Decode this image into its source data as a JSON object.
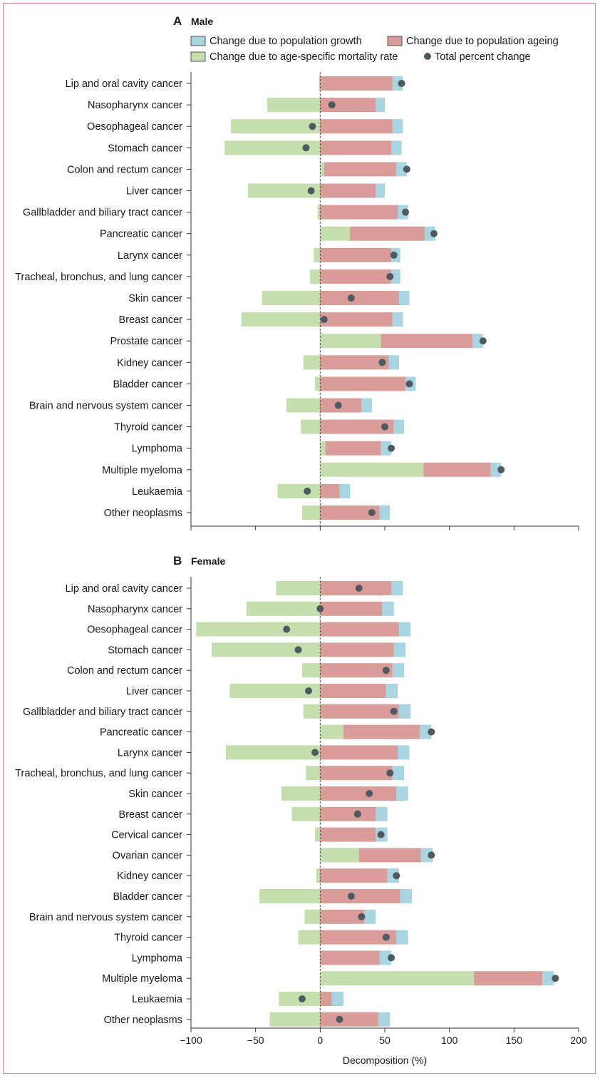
{
  "chart_data": [
    {
      "type": "bar",
      "panel": "A",
      "title": "Male",
      "xlabel": "",
      "xlim": [
        -100,
        200
      ],
      "xticks": [
        -100,
        -50,
        0,
        50,
        100,
        150,
        200
      ],
      "show_tick_labels": false,
      "legend": [
        {
          "key": "growth",
          "label": "Change due to population growth",
          "color": "#a8d5e2"
        },
        {
          "key": "ageing",
          "label": "Change due to population ageing",
          "color": "#d99c98"
        },
        {
          "key": "mortality",
          "label": "Change due to age-specific mortality rate",
          "color": "#c4deae"
        },
        {
          "key": "total",
          "label": "Total percent change",
          "color": "#4d5b5e"
        }
      ],
      "categories": [
        "Lip and oral cavity cancer",
        "Nasopharynx cancer",
        "Oesophageal cancer",
        "Stomach cancer",
        "Colon and rectum cancer",
        "Liver cancer",
        "Gallbladder and biliary tract cancer",
        "Pancreatic cancer",
        "Larynx cancer",
        "Tracheal, bronchus, and lung cancer",
        "Skin cancer",
        "Breast cancer",
        "Prostate cancer",
        "Kidney cancer",
        "Bladder cancer",
        "Brain and nervous system cancer",
        "Thyroid cancer",
        "Lymphoma",
        "Multiple myeloma",
        "Leukaemia",
        "Other neoplasms"
      ],
      "series": [
        {
          "name": "Change due to age-specific mortality rate",
          "key": "mortality",
          "values": [
            -1,
            -41,
            -69,
            -74,
            3,
            -56,
            -2,
            23,
            -5,
            -8,
            -45,
            -61,
            47,
            -13,
            -4,
            -26,
            -15,
            4,
            80,
            -33,
            -14
          ]
        },
        {
          "name": "Change due to population ageing",
          "key": "ageing",
          "values": [
            56,
            43,
            56,
            55,
            56,
            43,
            60,
            58,
            55,
            55,
            61,
            56,
            71,
            53,
            66,
            32,
            57,
            43,
            52,
            15,
            46
          ]
        },
        {
          "name": "Change due to population growth",
          "key": "growth",
          "values": [
            8,
            7,
            8,
            8,
            8,
            7,
            8,
            8,
            7,
            7,
            8,
            8,
            8,
            8,
            8,
            8,
            8,
            8,
            8,
            8,
            8
          ]
        },
        {
          "name": "Total percent change",
          "key": "total",
          "values": [
            63,
            9,
            -6,
            -11,
            67,
            -7,
            66,
            88,
            57,
            54,
            24,
            3,
            126,
            48,
            69,
            14,
            50,
            55,
            140,
            -10,
            40
          ]
        }
      ]
    },
    {
      "type": "bar",
      "panel": "B",
      "title": "Female",
      "xlabel": "Decomposition (%)",
      "xlim": [
        -100,
        200
      ],
      "xticks": [
        -100,
        -50,
        0,
        50,
        100,
        150,
        200
      ],
      "show_tick_labels": true,
      "categories": [
        "Lip and oral cavity cancer",
        "Nasopharynx cancer",
        "Oesophageal cancer",
        "Stomach cancer",
        "Colon and rectum cancer",
        "Liver cancer",
        "Gallbladder and biliary tract cancer",
        "Pancreatic cancer",
        "Larynx cancer",
        "Tracheal, bronchus, and lung cancer",
        "Skin cancer",
        "Breast cancer",
        "Cervical cancer",
        "Ovarian cancer",
        "Kidney cancer",
        "Bladder cancer",
        "Brain and nervous system cancer",
        "Thyroid cancer",
        "Lymphoma",
        "Multiple myeloma",
        "Leukaemia",
        "Other neoplasms"
      ],
      "series": [
        {
          "name": "Change due to age-specific mortality rate",
          "key": "mortality",
          "values": [
            -34,
            -57,
            -96,
            -84,
            -14,
            -70,
            -13,
            18,
            -73,
            -11,
            -30,
            -22,
            -4,
            30,
            -3,
            -47,
            -12,
            -17,
            0,
            119,
            -32,
            -39
          ]
        },
        {
          "name": "Change due to population ageing",
          "key": "ageing",
          "values": [
            55,
            48,
            61,
            57,
            56,
            51,
            61,
            59,
            60,
            56,
            59,
            43,
            43,
            48,
            52,
            62,
            34,
            59,
            46,
            53,
            9,
            45
          ]
        },
        {
          "name": "Change due to population growth",
          "key": "growth",
          "values": [
            9,
            9,
            9,
            9,
            9,
            9,
            9,
            9,
            9,
            9,
            9,
            9,
            9,
            9,
            9,
            9,
            9,
            9,
            9,
            9,
            9,
            9
          ]
        },
        {
          "name": "Total percent change",
          "key": "total",
          "values": [
            30,
            0,
            -26,
            -17,
            51,
            -9,
            57,
            86,
            -4,
            54,
            38,
            29,
            47,
            86,
            59,
            24,
            32,
            51,
            55,
            182,
            -14,
            15
          ]
        }
      ]
    }
  ]
}
